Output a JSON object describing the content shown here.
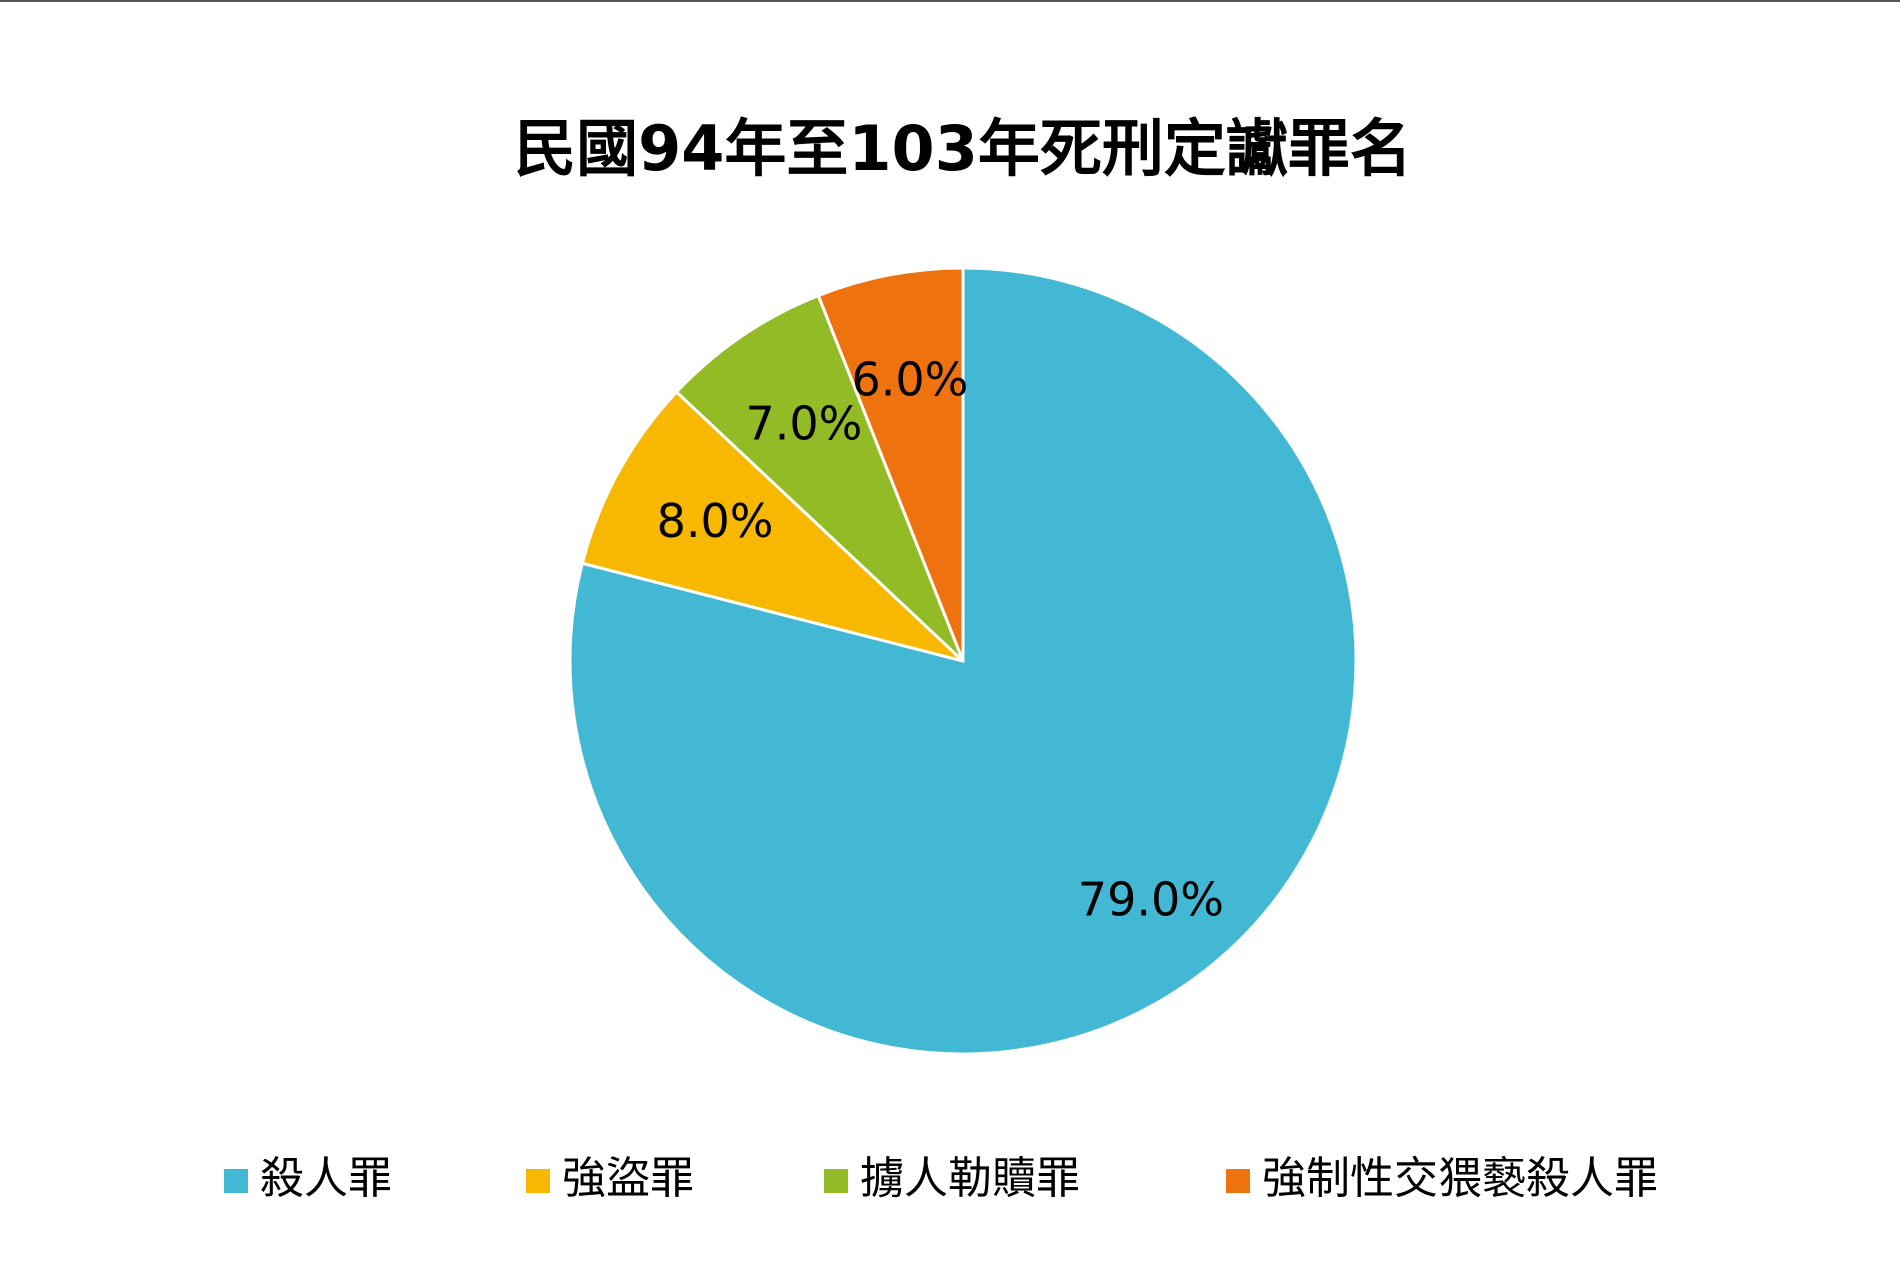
{
  "chart_data": {
    "type": "pie",
    "title": "民國94年至103年死刑定讞罪名",
    "categories": [
      "殺人罪",
      "強盜罪",
      "擄人勒贖罪",
      "強制性交猥褻殺人罪"
    ],
    "values": [
      79,
      8,
      7,
      6
    ],
    "value_labels": [
      "79.0%",
      "8.0%",
      "7.0%",
      "6.0%"
    ],
    "colors": [
      "#42b8d4",
      "#f8b800",
      "#92bb26",
      "#ee720e"
    ]
  }
}
